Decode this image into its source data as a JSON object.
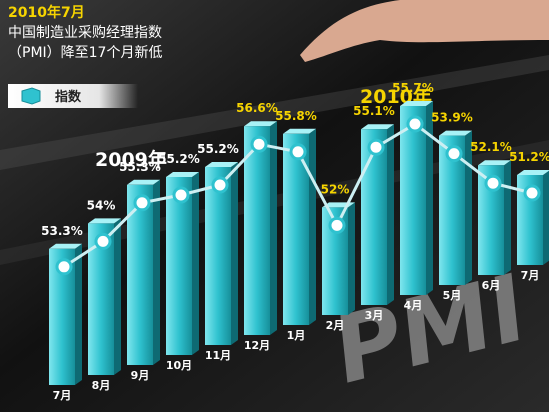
{
  "chart_data": {
    "type": "bar-line",
    "title": "2010年7月",
    "subtitle": [
      "中国制造业采购经理指数",
      "（PMI）降至17个月新低"
    ],
    "legend": "指数",
    "year_labels": [
      "2009年",
      "2010年"
    ],
    "watermark": "PMI",
    "categories": [
      "7月",
      "8月",
      "9月",
      "10月",
      "11月",
      "12月",
      "1月",
      "2月",
      "3月",
      "4月",
      "5月",
      "6月",
      "7月"
    ],
    "values": [
      53.3,
      54,
      55.3,
      55.2,
      55.2,
      56.6,
      55.8,
      52,
      55.1,
      55.7,
      53.9,
      52.1,
      51.2
    ],
    "value_labels": [
      "53.3%",
      "54%",
      "55.3%",
      "55.2%",
      "55.2%",
      "56.6%",
      "55.8%",
      "52%",
      "55.1%",
      "55.7%",
      "53.9%",
      "52.1%",
      "51.2%"
    ]
  }
}
